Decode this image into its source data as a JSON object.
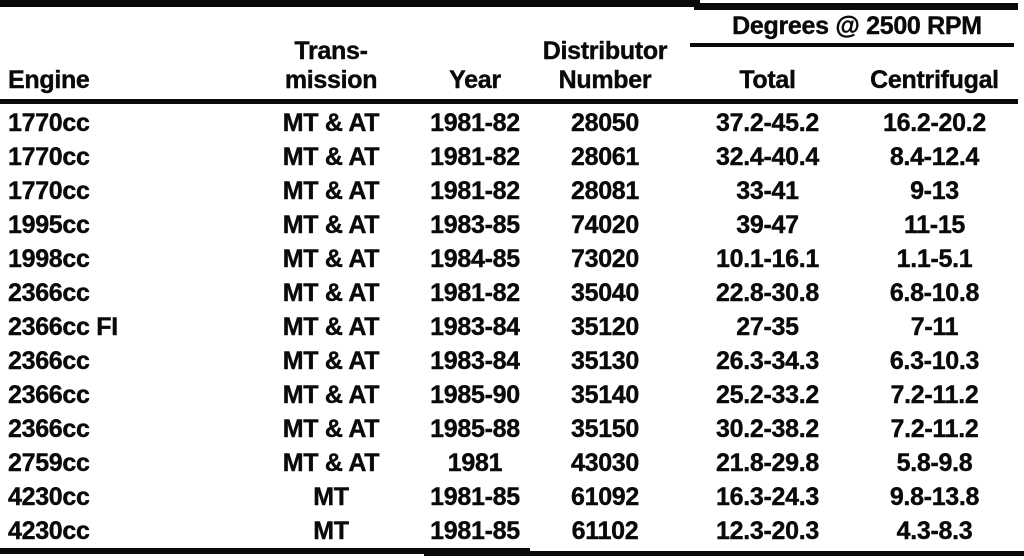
{
  "table": {
    "header": {
      "engine": "Engine",
      "transmission_line1": "Trans-",
      "transmission_line2": "mission",
      "year": "Year",
      "distributor_line1": "Distributor",
      "distributor_line2": "Number",
      "degrees_group": "Degrees @ 2500 RPM",
      "total": "Total",
      "centrifugal": "Centrifugal"
    },
    "rows": [
      {
        "engine": "1770cc",
        "transmission": "MT & AT",
        "year": "1981-82",
        "distributor": "28050",
        "total": "37.2-45.2",
        "centrifugal": "16.2-20.2"
      },
      {
        "engine": "1770cc",
        "transmission": "MT & AT",
        "year": "1981-82",
        "distributor": "28061",
        "total": "32.4-40.4",
        "centrifugal": "8.4-12.4"
      },
      {
        "engine": "1770cc",
        "transmission": "MT & AT",
        "year": "1981-82",
        "distributor": "28081",
        "total": "33-41",
        "centrifugal": "9-13"
      },
      {
        "engine": "1995cc",
        "transmission": "MT & AT",
        "year": "1983-85",
        "distributor": "74020",
        "total": "39-47",
        "centrifugal": "11-15"
      },
      {
        "engine": "1998cc",
        "transmission": "MT & AT",
        "year": "1984-85",
        "distributor": "73020",
        "total": "10.1-16.1",
        "centrifugal": "1.1-5.1"
      },
      {
        "engine": "2366cc",
        "transmission": "MT & AT",
        "year": "1981-82",
        "distributor": "35040",
        "total": "22.8-30.8",
        "centrifugal": "6.8-10.8"
      },
      {
        "engine": "2366cc FI",
        "transmission": "MT & AT",
        "year": "1983-84",
        "distributor": "35120",
        "total": "27-35",
        "centrifugal": "7-11"
      },
      {
        "engine": "2366cc",
        "transmission": "MT & AT",
        "year": "1983-84",
        "distributor": "35130",
        "total": "26.3-34.3",
        "centrifugal": "6.3-10.3"
      },
      {
        "engine": "2366cc",
        "transmission": "MT & AT",
        "year": "1985-90",
        "distributor": "35140",
        "total": "25.2-33.2",
        "centrifugal": "7.2-11.2"
      },
      {
        "engine": "2366cc",
        "transmission": "MT & AT",
        "year": "1985-88",
        "distributor": "35150",
        "total": "30.2-38.2",
        "centrifugal": "7.2-11.2"
      },
      {
        "engine": "2759cc",
        "transmission": "MT & AT",
        "year": "1981",
        "distributor": "43030",
        "total": "21.8-29.8",
        "centrifugal": "5.8-9.8"
      },
      {
        "engine": "4230cc",
        "transmission": "MT",
        "year": "1981-85",
        "distributor": "61092",
        "total": "16.3-24.3",
        "centrifugal": "9.8-13.8"
      },
      {
        "engine": "4230cc",
        "transmission": "MT",
        "year": "1981-85",
        "distributor": "61102",
        "total": "12.3-20.3",
        "centrifugal": "4.3-8.3"
      }
    ]
  }
}
